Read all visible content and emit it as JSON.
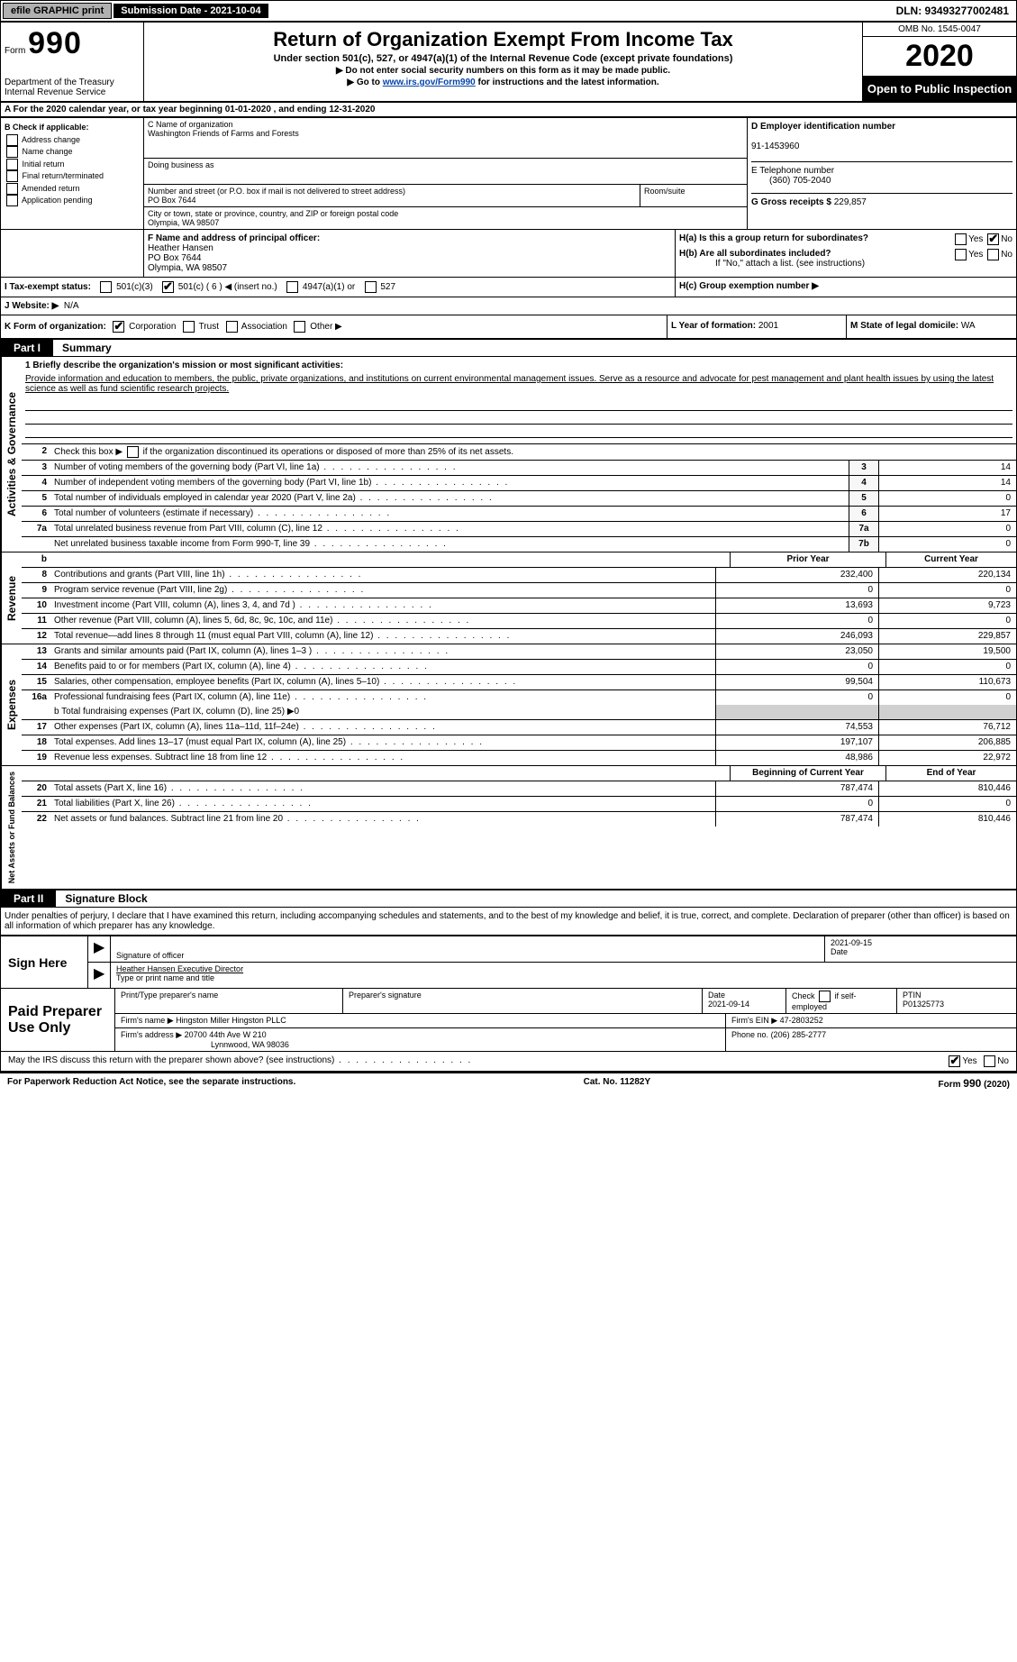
{
  "topbar": {
    "efile": "efile GRAPHIC print",
    "submission": "Submission Date - 2021-10-04",
    "dln": "DLN: 93493277002481"
  },
  "header": {
    "form_word": "Form",
    "form_num": "990",
    "title": "Return of Organization Exempt From Income Tax",
    "subtitle": "Under section 501(c), 527, or 4947(a)(1) of the Internal Revenue Code (except private foundations)",
    "note1": "▶ Do not enter social security numbers on this form as it may be made public.",
    "note2_pre": "▶ Go to ",
    "note2_link": "www.irs.gov/Form990",
    "note2_post": " for instructions and the latest information.",
    "dept": "Department of the Treasury Internal Revenue Service",
    "omb": "OMB No. 1545-0047",
    "year": "2020",
    "open": "Open to Public Inspection"
  },
  "section_a": "A For the 2020 calendar year, or tax year beginning 01-01-2020    , and ending 12-31-2020",
  "box_b": {
    "label": "B Check if applicable:",
    "opts": [
      "Address change",
      "Name change",
      "Initial return",
      "Final return/terminated",
      "Amended return",
      "Application pending"
    ]
  },
  "box_c": {
    "name_label": "C Name of organization",
    "name": "Washington Friends of Farms and Forests",
    "dba_label": "Doing business as",
    "addr_label": "Number and street (or P.O. box if mail is not delivered to street address)",
    "room_label": "Room/suite",
    "addr": "PO Box 7644",
    "city_label": "City or town, state or province, country, and ZIP or foreign postal code",
    "city": "Olympia, WA  98507"
  },
  "box_d": {
    "label": "D Employer identification number",
    "value": "91-1453960"
  },
  "box_e": {
    "label": "E Telephone number",
    "value": "(360) 705-2040"
  },
  "box_g": {
    "label": "G Gross receipts $",
    "value": "229,857"
  },
  "box_f": {
    "label": "F  Name and address of principal officer:",
    "name": "Heather Hansen",
    "addr1": "PO Box 7644",
    "addr2": "Olympia, WA  98507"
  },
  "box_h": {
    "ha": "H(a)  Is this a group return for subordinates?",
    "hb": "H(b)  Are all subordinates included?",
    "hb_note": "If \"No,\" attach a list. (see instructions)",
    "hc": "H(c)  Group exemption number ▶",
    "yes": "Yes",
    "no": "No"
  },
  "box_i": {
    "label": "I    Tax-exempt status:",
    "o1": "501(c)(3)",
    "o2": "501(c) ( 6 ) ◀ (insert no.)",
    "o3": "4947(a)(1) or",
    "o4": "527"
  },
  "box_j": {
    "label": "J   Website: ▶",
    "value": "N/A"
  },
  "box_k": {
    "label": "K Form of organization:",
    "o1": "Corporation",
    "o2": "Trust",
    "o3": "Association",
    "o4": "Other ▶"
  },
  "box_l": {
    "label": "L Year of formation:",
    "value": "2001"
  },
  "box_m": {
    "label": "M State of legal domicile:",
    "value": "WA"
  },
  "part1": {
    "tab": "Part I",
    "title": "Summary"
  },
  "vlabels": {
    "gov": "Activities & Governance",
    "rev": "Revenue",
    "exp": "Expenses",
    "net": "Net Assets or Fund Balances"
  },
  "summary": {
    "l1_label": "1  Briefly describe the organization's mission or most significant activities:",
    "l1_text": "Provide information and education to members, the public, private organizations, and institutions on current environmental management issues. Serve as a resource and advocate for pest management and plant health issues by using the latest science as well as fund scientific research projects.",
    "l2": "Check this box ▶",
    "l2_post": "if the organization discontinued its operations or disposed of more than 25% of its net assets.",
    "lines_single": [
      {
        "n": "3",
        "t": "Number of voting members of the governing body (Part VI, line 1a)",
        "box": "3",
        "v": "14"
      },
      {
        "n": "4",
        "t": "Number of independent voting members of the governing body (Part VI, line 1b)",
        "box": "4",
        "v": "14"
      },
      {
        "n": "5",
        "t": "Total number of individuals employed in calendar year 2020 (Part V, line 2a)",
        "box": "5",
        "v": "0"
      },
      {
        "n": "6",
        "t": "Total number of volunteers (estimate if necessary)",
        "box": "6",
        "v": "17"
      },
      {
        "n": "7a",
        "t": "Total unrelated business revenue from Part VIII, column (C), line 12",
        "box": "7a",
        "v": "0"
      },
      {
        "n": "",
        "t": "Net unrelated business taxable income from Form 990-T, line 39",
        "box": "7b",
        "v": "0"
      }
    ],
    "hdr_prior": "Prior Year",
    "hdr_current": "Current Year",
    "rev_lines": [
      {
        "n": "8",
        "t": "Contributions and grants (Part VIII, line 1h)",
        "p": "232,400",
        "c": "220,134"
      },
      {
        "n": "9",
        "t": "Program service revenue (Part VIII, line 2g)",
        "p": "0",
        "c": "0"
      },
      {
        "n": "10",
        "t": "Investment income (Part VIII, column (A), lines 3, 4, and 7d )",
        "p": "13,693",
        "c": "9,723"
      },
      {
        "n": "11",
        "t": "Other revenue (Part VIII, column (A), lines 5, 6d, 8c, 9c, 10c, and 11e)",
        "p": "0",
        "c": "0"
      },
      {
        "n": "12",
        "t": "Total revenue—add lines 8 through 11 (must equal Part VIII, column (A), line 12)",
        "p": "246,093",
        "c": "229,857"
      }
    ],
    "exp_lines": [
      {
        "n": "13",
        "t": "Grants and similar amounts paid (Part IX, column (A), lines 1–3 )",
        "p": "23,050",
        "c": "19,500"
      },
      {
        "n": "14",
        "t": "Benefits paid to or for members (Part IX, column (A), line 4)",
        "p": "0",
        "c": "0"
      },
      {
        "n": "15",
        "t": "Salaries, other compensation, employee benefits (Part IX, column (A), lines 5–10)",
        "p": "99,504",
        "c": "110,673"
      },
      {
        "n": "16a",
        "t": "Professional fundraising fees (Part IX, column (A), line 11e)",
        "p": "0",
        "c": "0"
      }
    ],
    "l16b": "b  Total fundraising expenses (Part IX, column (D), line 25) ▶0",
    "exp_lines2": [
      {
        "n": "17",
        "t": "Other expenses (Part IX, column (A), lines 11a–11d, 11f–24e)",
        "p": "74,553",
        "c": "76,712"
      },
      {
        "n": "18",
        "t": "Total expenses. Add lines 13–17 (must equal Part IX, column (A), line 25)",
        "p": "197,107",
        "c": "206,885"
      },
      {
        "n": "19",
        "t": "Revenue less expenses. Subtract line 18 from line 12",
        "p": "48,986",
        "c": "22,972"
      }
    ],
    "hdr_begin": "Beginning of Current Year",
    "hdr_end": "End of Year",
    "net_lines": [
      {
        "n": "20",
        "t": "Total assets (Part X, line 16)",
        "p": "787,474",
        "c": "810,446"
      },
      {
        "n": "21",
        "t": "Total liabilities (Part X, line 26)",
        "p": "0",
        "c": "0"
      },
      {
        "n": "22",
        "t": "Net assets or fund balances. Subtract line 21 from line 20",
        "p": "787,474",
        "c": "810,446"
      }
    ]
  },
  "part2": {
    "tab": "Part II",
    "title": "Signature Block"
  },
  "declare": "Under penalties of perjury, I declare that I have examined this return, including accompanying schedules and statements, and to the best of my knowledge and belief, it is true, correct, and complete. Declaration of preparer (other than officer) is based on all information of which preparer has any knowledge.",
  "sign": {
    "label": "Sign Here",
    "sig_officer": "Signature of officer",
    "date": "Date",
    "date_val": "2021-09-15",
    "name_title": "Heather Hansen  Executive Director",
    "type_name": "Type or print name and title"
  },
  "paid": {
    "label": "Paid Preparer Use Only",
    "h1": "Print/Type preparer's name",
    "h2": "Preparer's signature",
    "h3": "Date",
    "date": "2021-09-14",
    "h4": "Check",
    "h4b": "if self-employed",
    "h5": "PTIN",
    "ptin": "P01325773",
    "firm_name_l": "Firm's name    ▶",
    "firm_name": "Hingston Miller Hingston PLLC",
    "firm_ein_l": "Firm's EIN ▶",
    "firm_ein": "47-2803252",
    "firm_addr_l": "Firm's address ▶",
    "firm_addr1": "20700 44th Ave W 210",
    "firm_addr2": "Lynnwood, WA  98036",
    "phone_l": "Phone no.",
    "phone": "(206) 285-2777"
  },
  "discuss": {
    "text": "May the IRS discuss this return with the preparer shown above? (see instructions)",
    "yes": "Yes",
    "no": "No"
  },
  "footer": {
    "left": "For Paperwork Reduction Act Notice, see the separate instructions.",
    "mid": "Cat. No. 11282Y",
    "right_pre": "Form ",
    "right_form": "990",
    "right_post": " (2020)"
  }
}
